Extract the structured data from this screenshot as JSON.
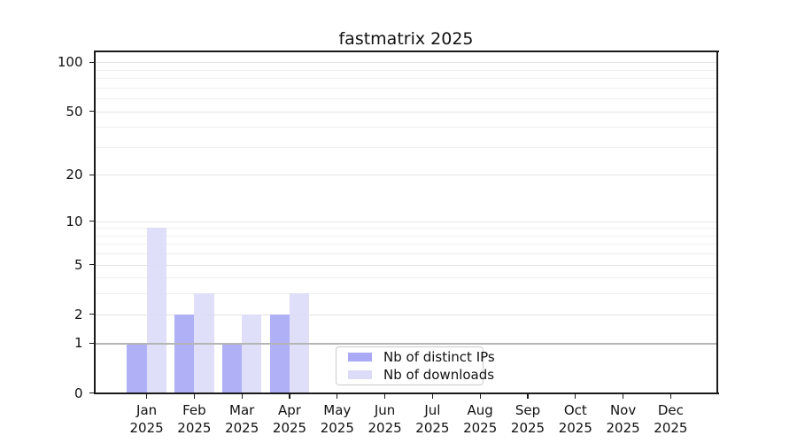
{
  "chart_data": {
    "type": "bar",
    "title": "fastmatrix 2025",
    "xlabel": "",
    "ylabel": "",
    "months": [
      "Jan",
      "Feb",
      "Mar",
      "Apr",
      "May",
      "Jun",
      "Jul",
      "Aug",
      "Sep",
      "Oct",
      "Nov",
      "Dec"
    ],
    "year": "2025",
    "series": [
      {
        "name": "Nb of distinct IPs",
        "color": "#a9a9f6",
        "values": [
          1,
          2,
          1,
          2,
          0,
          0,
          0,
          0,
          0,
          0,
          0,
          0
        ]
      },
      {
        "name": "Nb of downloads",
        "color": "#dcdcf8",
        "values": [
          9,
          3,
          2,
          3,
          0,
          0,
          0,
          0,
          0,
          0,
          0,
          0
        ]
      }
    ],
    "yscale": "log1p",
    "yticks": [
      0,
      1,
      2,
      5,
      10,
      20,
      50,
      100
    ],
    "ymax": 116,
    "grid": {
      "minor_values": [
        3,
        4,
        6,
        7,
        8,
        9,
        30,
        40,
        60,
        70,
        80,
        90
      ],
      "major_values": [
        2,
        5,
        10,
        20,
        50,
        100
      ],
      "baseline_value": 1,
      "minor_color": "#efefef",
      "major_color": "#e4e4e4",
      "baseline_color": "#b5b5b5"
    },
    "legend": {
      "position": "lower-center"
    }
  }
}
